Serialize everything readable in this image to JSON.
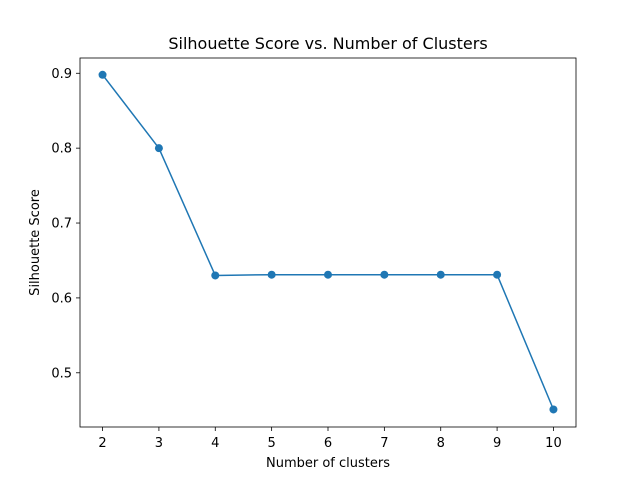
{
  "chart_data": {
    "type": "line",
    "title": "Silhouette Score vs. Number of Clusters",
    "xlabel": "Number of clusters",
    "ylabel": "Silhouette Score",
    "x": [
      2,
      3,
      4,
      5,
      6,
      7,
      8,
      9,
      10
    ],
    "series": [
      {
        "values": [
          0.898,
          0.8,
          0.63,
          0.631,
          0.631,
          0.631,
          0.631,
          0.631,
          0.451
        ],
        "color": "#1f77b4",
        "marker": "circle"
      }
    ],
    "xlim": [
      1.6,
      10.4
    ],
    "ylim": [
      0.4276,
      0.9204
    ],
    "xticks": [
      "2",
      "3",
      "4",
      "5",
      "6",
      "7",
      "8",
      "9",
      "10"
    ],
    "xtick_values": [
      2,
      3,
      4,
      5,
      6,
      7,
      8,
      9,
      10
    ],
    "yticks": [
      "0.5",
      "0.6",
      "0.7",
      "0.8",
      "0.9"
    ],
    "ytick_values": [
      0.5,
      0.6,
      0.7,
      0.8,
      0.9
    ],
    "grid": false,
    "legend": "none"
  }
}
